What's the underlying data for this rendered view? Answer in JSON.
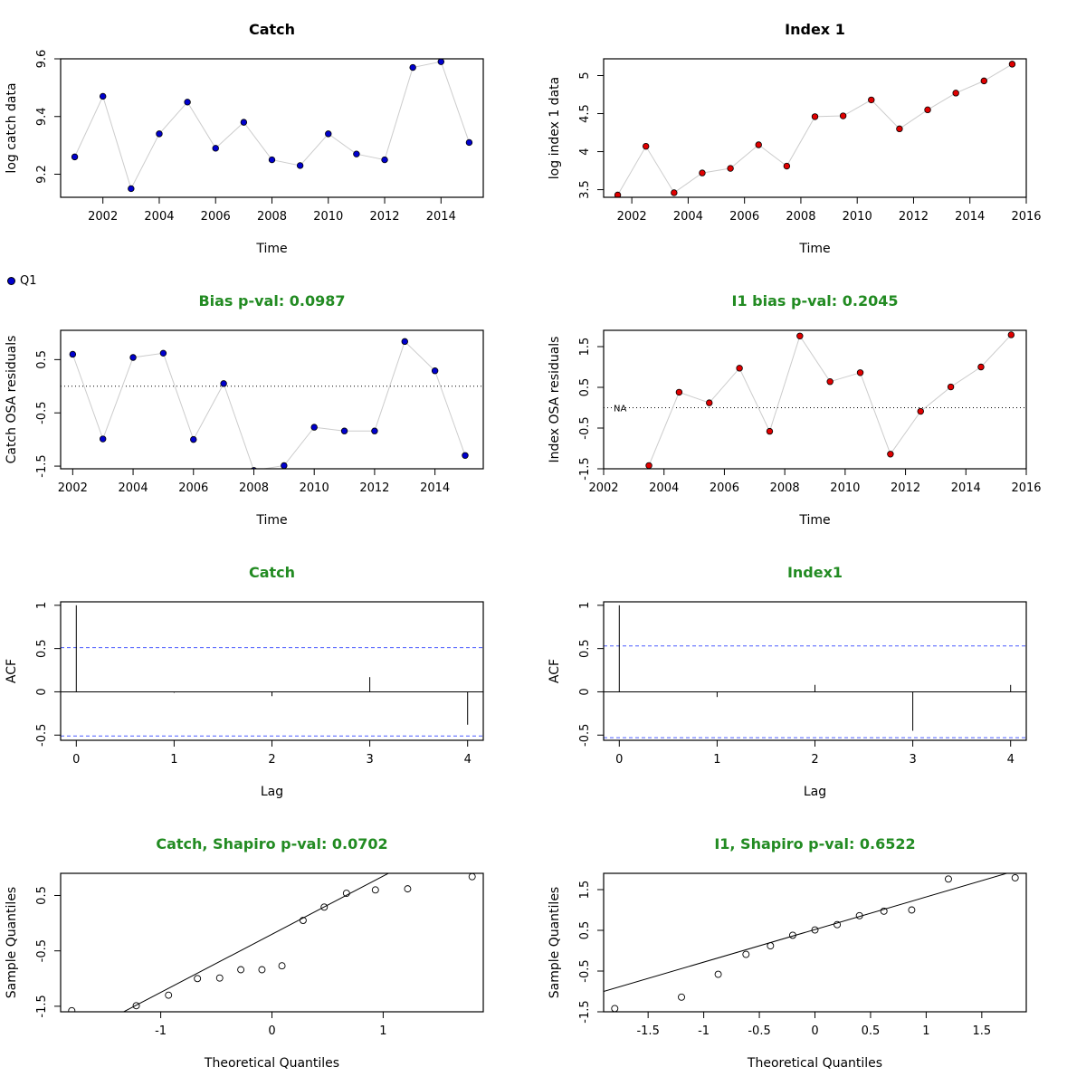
{
  "legend": {
    "label": "Q1",
    "color": "#0000cd"
  },
  "colors": {
    "catch": "#0000cd",
    "index": "#e00000",
    "green": "#228b22",
    "ci": "#4a5bff",
    "connector": "#cccccc"
  },
  "chart_data": [
    {
      "id": "catch_ts",
      "type": "scatter",
      "connect": true,
      "title": "Catch",
      "xlabel": "Time",
      "ylabel": "log catch data",
      "xlim": [
        2000.5,
        2015.5
      ],
      "ylim": [
        9.12,
        9.6
      ],
      "xticks": [
        2002,
        2004,
        2006,
        2008,
        2010,
        2012,
        2014
      ],
      "yticks": [
        9.2,
        9.4,
        9.6
      ],
      "series": [
        {
          "color": "#0000cd",
          "x": [
            2001,
            2002,
            2003,
            2004,
            2005,
            2006,
            2007,
            2008,
            2009,
            2010,
            2011,
            2012,
            2013,
            2014,
            2015
          ],
          "y": [
            9.26,
            9.47,
            9.15,
            9.34,
            9.45,
            9.29,
            9.38,
            9.25,
            9.23,
            9.34,
            9.27,
            9.25,
            9.57,
            9.59,
            9.31
          ]
        }
      ]
    },
    {
      "id": "index_ts",
      "type": "scatter",
      "connect": true,
      "title": "Index 1",
      "xlabel": "Time",
      "ylabel": "log index 1 data",
      "xlim": [
        2001.0,
        2016.0
      ],
      "ylim": [
        3.4,
        5.22
      ],
      "xticks": [
        2002,
        2004,
        2006,
        2008,
        2010,
        2012,
        2014,
        2016
      ],
      "yticks": [
        3.5,
        4.0,
        4.5,
        5.0
      ],
      "series": [
        {
          "color": "#e00000",
          "x": [
            2001.5,
            2002.5,
            2003.5,
            2004.5,
            2005.5,
            2006.5,
            2007.5,
            2008.5,
            2009.5,
            2010.5,
            2011.5,
            2012.5,
            2013.5,
            2014.5,
            2015.5
          ],
          "y": [
            3.43,
            4.07,
            3.46,
            3.72,
            3.78,
            4.09,
            3.81,
            4.46,
            4.47,
            4.68,
            4.3,
            4.55,
            4.77,
            4.93,
            5.15
          ]
        }
      ]
    },
    {
      "id": "catch_resid",
      "type": "scatter",
      "connect": true,
      "title": "Bias p-val: 0.0987",
      "title_color": "#228b22",
      "xlabel": "Time",
      "ylabel": "Catch OSA residuals",
      "xlim": [
        2001.6,
        2015.6
      ],
      "ylim": [
        -1.55,
        1.05
      ],
      "xticks": [
        2002,
        2004,
        2006,
        2008,
        2010,
        2012,
        2014
      ],
      "yticks": [
        -1.5,
        -0.5,
        0.5
      ],
      "hline": 0,
      "series": [
        {
          "color": "#0000cd",
          "x": [
            2002,
            2003,
            2004,
            2005,
            2006,
            2007,
            2008,
            2009,
            2010,
            2011,
            2012,
            2013,
            2014,
            2015
          ],
          "y": [
            0.6,
            -0.99,
            0.54,
            0.62,
            -1.0,
            0.05,
            -1.58,
            -1.49,
            -0.77,
            -0.84,
            -0.84,
            0.84,
            0.29,
            -1.3
          ]
        }
      ]
    },
    {
      "id": "index_resid",
      "type": "scatter",
      "connect": true,
      "title": "I1 bias p-val: 0.2045",
      "title_color": "#228b22",
      "xlabel": "Time",
      "ylabel": "Index OSA residuals",
      "xlim": [
        2002.0,
        2016.0
      ],
      "ylim": [
        -1.5,
        1.9
      ],
      "xticks": [
        2002,
        2004,
        2006,
        2008,
        2010,
        2012,
        2014,
        2016
      ],
      "yticks": [
        -1.5,
        -0.5,
        0.5,
        1.5
      ],
      "hline": 0,
      "hline_label": "NA",
      "series": [
        {
          "color": "#e00000",
          "x": [
            2003.5,
            2004.5,
            2005.5,
            2006.5,
            2007.5,
            2008.5,
            2009.5,
            2010.5,
            2011.5,
            2012.5,
            2013.5,
            2014.5,
            2015.5
          ],
          "y": [
            -1.42,
            0.38,
            0.12,
            0.97,
            -0.58,
            1.76,
            0.64,
            0.86,
            -1.14,
            -0.09,
            0.51,
            1.0,
            1.79
          ]
        }
      ]
    },
    {
      "id": "catch_acf",
      "type": "acf",
      "title": "Catch",
      "title_color": "#228b22",
      "xlabel": "Lag",
      "ylabel": "ACF",
      "xlim": [
        -0.16,
        4.16
      ],
      "ylim": [
        -0.56,
        1.04
      ],
      "xticks": [
        0,
        1,
        2,
        3,
        4
      ],
      "yticks": [
        -0.5,
        0.0,
        0.5,
        1.0
      ],
      "lags": [
        0,
        1,
        2,
        3,
        4
      ],
      "values": [
        1.0,
        -0.01,
        -0.05,
        0.17,
        -0.38
      ],
      "ci": 0.51
    },
    {
      "id": "index_acf",
      "type": "acf",
      "title": "Index1",
      "title_color": "#228b22",
      "xlabel": "Lag",
      "ylabel": "ACF",
      "xlim": [
        -0.16,
        4.16
      ],
      "ylim": [
        -0.56,
        1.04
      ],
      "xticks": [
        0,
        1,
        2,
        3,
        4
      ],
      "yticks": [
        -0.5,
        0.0,
        0.5,
        1.0
      ],
      "lags": [
        0,
        1,
        2,
        3,
        4
      ],
      "values": [
        1.0,
        -0.06,
        0.08,
        -0.45,
        0.08
      ],
      "ci": 0.53
    },
    {
      "id": "catch_qq",
      "type": "qq",
      "title": "Catch, Shapiro p-val: 0.0702",
      "title_color": "#228b22",
      "xlabel": "Theoretical Quantiles",
      "ylabel": "Sample Quantiles",
      "xlim": [
        -1.9,
        1.9
      ],
      "ylim": [
        -1.6,
        0.9
      ],
      "xticks": [
        -1,
        0,
        1
      ],
      "yticks": [
        -1.5,
        -0.5,
        0.5
      ],
      "x": [
        -1.8,
        -1.22,
        -0.93,
        -0.67,
        -0.47,
        -0.28,
        -0.09,
        0.09,
        0.28,
        0.47,
        0.67,
        0.93,
        1.22,
        1.8
      ],
      "y": [
        -1.58,
        -1.49,
        -1.3,
        -1.0,
        -0.99,
        -0.84,
        -0.84,
        -0.77,
        0.05,
        0.29,
        0.54,
        0.6,
        0.62,
        0.84
      ],
      "line": {
        "intercept": -0.2,
        "slope": 1.05
      }
    },
    {
      "id": "index_qq",
      "type": "qq",
      "title": "I1, Shapiro p-val: 0.6522",
      "title_color": "#228b22",
      "xlabel": "Theoretical Quantiles",
      "ylabel": "Sample Quantiles",
      "xlim": [
        -1.9,
        1.9
      ],
      "ylim": [
        -1.5,
        1.9
      ],
      "xticks": [
        -1.5,
        -1.0,
        -0.5,
        0.0,
        0.5,
        1.0,
        1.5
      ],
      "yticks": [
        -1.5,
        -0.5,
        0.5,
        1.5
      ],
      "x": [
        -1.8,
        -1.2,
        -0.87,
        -0.62,
        -0.4,
        -0.2,
        0.0,
        0.2,
        0.4,
        0.62,
        0.87,
        1.2,
        1.8
      ],
      "y": [
        -1.42,
        -1.14,
        -0.58,
        -0.09,
        0.12,
        0.38,
        0.51,
        0.64,
        0.86,
        0.97,
        1.0,
        1.76,
        1.79
      ],
      "line": {
        "intercept": 0.52,
        "slope": 0.8
      }
    }
  ]
}
